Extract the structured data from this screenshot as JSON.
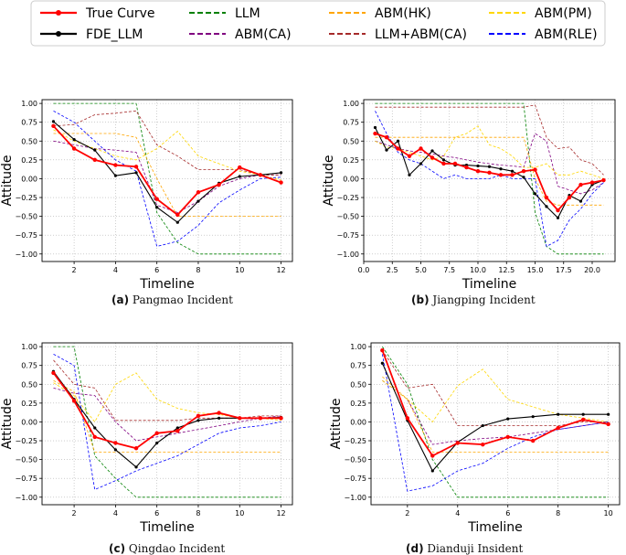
{
  "legend": {
    "entries": [
      {
        "label": "True Curve",
        "color": "#ff0000",
        "style": "solid-marker"
      },
      {
        "label": "FDE_LLM",
        "color": "#000000",
        "style": "solid-marker"
      },
      {
        "label": "LLM",
        "color": "#008000",
        "style": "dashed"
      },
      {
        "label": "ABM(CA)",
        "color": "#800080",
        "style": "dashed"
      },
      {
        "label": "ABM(HK)",
        "color": "#ffa500",
        "style": "dashed"
      },
      {
        "label": "LLM+ABM(CA)",
        "color": "#a52a2a",
        "style": "dashed"
      },
      {
        "label": "ABM(PM)",
        "color": "#ffd700",
        "style": "dashed"
      },
      {
        "label": "ABM(RLE)",
        "color": "#0000ff",
        "style": "dashed"
      }
    ]
  },
  "chart_data": [
    {
      "type": "line",
      "caption_tag": "(a)",
      "caption_text": "Pangmao Incident",
      "xlabel": "Timeline",
      "ylabel": "Attitude",
      "xlim": [
        0.45,
        12.55
      ],
      "ylim": [
        -1.1,
        1.05
      ],
      "xticks": [
        "2",
        "4",
        "6",
        "8",
        "10",
        "12"
      ],
      "xtick_values": [
        2,
        4,
        6,
        8,
        10,
        12
      ],
      "yticks": [
        "1.00",
        "0.75",
        "0.50",
        "0.25",
        "0.00",
        "−0.25",
        "−0.50",
        "−0.75",
        "−1.00"
      ],
      "ytick_values": [
        1.0,
        0.75,
        0.5,
        0.25,
        0.0,
        -0.25,
        -0.5,
        -0.75,
        -1.0
      ],
      "x": [
        1,
        2,
        3,
        4,
        5,
        6,
        7,
        8,
        9,
        10,
        11,
        12
      ],
      "series": [
        {
          "name": "LLM",
          "color": "#008000",
          "values": [
            1.0,
            1.0,
            1.0,
            1.0,
            1.0,
            -0.45,
            -0.85,
            -1.0,
            -1.0,
            -1.0,
            -1.0,
            -1.0
          ]
        },
        {
          "name": "ABM(CA)",
          "color": "#800080",
          "values": [
            0.5,
            0.45,
            0.4,
            0.38,
            0.35,
            -0.35,
            -0.45,
            -0.3,
            -0.1,
            0.0,
            0.05,
            0.05
          ]
        },
        {
          "name": "ABM(HK)",
          "color": "#ffa500",
          "values": [
            0.6,
            0.6,
            0.6,
            0.6,
            0.55,
            0.0,
            -0.5,
            -0.5,
            -0.5,
            -0.5,
            -0.5,
            -0.5
          ]
        },
        {
          "name": "LLM+ABM(CA)",
          "color": "#a52a2a",
          "values": [
            0.7,
            0.72,
            0.85,
            0.87,
            0.9,
            0.45,
            0.3,
            0.12,
            0.12,
            0.12,
            0.05,
            0.05
          ]
        },
        {
          "name": "ABM(PM)",
          "color": "#ffd700",
          "values": [
            0.65,
            0.5,
            0.4,
            0.3,
            0.25,
            0.4,
            0.63,
            0.3,
            0.2,
            0.1,
            0.05,
            -0.02
          ]
        },
        {
          "name": "ABM(RLE)",
          "color": "#0000ff",
          "values": [
            0.9,
            0.75,
            0.5,
            0.25,
            0.1,
            -0.9,
            -0.83,
            -0.62,
            -0.32,
            -0.15,
            0.0,
            0.02
          ]
        },
        {
          "name": "FDE_LLM",
          "color": "#000000",
          "values": [
            0.76,
            0.52,
            0.38,
            0.04,
            0.08,
            -0.38,
            -0.58,
            -0.3,
            -0.06,
            0.03,
            0.05,
            0.08
          ]
        },
        {
          "name": "True Curve",
          "color": "#ff0000",
          "values": [
            0.7,
            0.4,
            0.25,
            0.18,
            0.16,
            -0.27,
            -0.48,
            -0.18,
            -0.08,
            0.15,
            0.05,
            -0.05
          ]
        }
      ]
    },
    {
      "type": "line",
      "caption_tag": "(b)",
      "caption_text": "Jiangping Incident",
      "xlabel": "Timeline",
      "ylabel": "Attitude",
      "xlim": [
        0.0,
        22.0
      ],
      "ylim": [
        -1.1,
        1.05
      ],
      "xticks": [
        "0.0",
        "2.5",
        "5.0",
        "7.5",
        "10.0",
        "12.5",
        "15.0",
        "17.5",
        "20.0"
      ],
      "xtick_values": [
        0,
        2.5,
        5,
        7.5,
        10,
        12.5,
        15,
        17.5,
        20
      ],
      "yticks": [
        "1.00",
        "0.75",
        "0.50",
        "0.25",
        "0.00",
        "−0.25",
        "−0.50",
        "−0.75",
        "−1.00"
      ],
      "ytick_values": [
        1.0,
        0.75,
        0.5,
        0.25,
        0.0,
        -0.25,
        -0.5,
        -0.75,
        -1.0
      ],
      "x": [
        1,
        2,
        3,
        4,
        5,
        6,
        7,
        8,
        9,
        10,
        11,
        12,
        13,
        14,
        15,
        16,
        17,
        18,
        19,
        20,
        21
      ],
      "series": [
        {
          "name": "LLM",
          "color": "#008000",
          "values": [
            1.0,
            1.0,
            1.0,
            1.0,
            1.0,
            1.0,
            1.0,
            1.0,
            1.0,
            1.0,
            1.0,
            1.0,
            1.0,
            1.0,
            -0.45,
            -0.9,
            -1.0,
            -1.0,
            -1.0,
            -1.0,
            -1.0
          ]
        },
        {
          "name": "ABM(CA)",
          "color": "#800080",
          "values": [
            0.5,
            0.45,
            0.4,
            0.37,
            0.35,
            0.33,
            0.3,
            0.28,
            0.25,
            0.22,
            0.2,
            0.18,
            0.17,
            0.15,
            0.6,
            0.5,
            -0.1,
            -0.15,
            -0.2,
            -0.15,
            -0.05
          ]
        },
        {
          "name": "ABM(HK)",
          "color": "#ffa500",
          "values": [
            0.55,
            0.55,
            0.55,
            0.55,
            0.55,
            0.55,
            0.55,
            0.55,
            0.55,
            0.55,
            0.55,
            0.55,
            0.55,
            0.55,
            0.0,
            -0.3,
            -0.35,
            -0.35,
            -0.35,
            -0.35,
            -0.35
          ]
        },
        {
          "name": "LLM+ABM(CA)",
          "color": "#a52a2a",
          "values": [
            0.95,
            0.95,
            0.95,
            0.95,
            0.95,
            0.95,
            0.95,
            0.95,
            0.95,
            0.95,
            0.95,
            0.95,
            0.95,
            0.95,
            0.98,
            0.55,
            0.4,
            0.42,
            0.25,
            0.2,
            0.05
          ]
        },
        {
          "name": "ABM(PM)",
          "color": "#ffd700",
          "values": [
            0.5,
            0.42,
            0.4,
            0.35,
            0.3,
            0.25,
            0.3,
            0.55,
            0.6,
            0.7,
            0.45,
            0.4,
            0.3,
            0.15,
            0.15,
            0.2,
            0.05,
            0.05,
            0.1,
            0.05,
            0.0
          ]
        },
        {
          "name": "ABM(RLE)",
          "color": "#0000ff",
          "values": [
            0.9,
            0.6,
            0.35,
            0.25,
            0.2,
            0.1,
            0.0,
            0.05,
            0.0,
            0.0,
            0.0,
            0.05,
            0.0,
            0.0,
            0.0,
            -0.9,
            -0.82,
            -0.55,
            -0.4,
            -0.2,
            -0.05
          ]
        },
        {
          "name": "FDE_LLM",
          "color": "#000000",
          "values": [
            0.68,
            0.38,
            0.5,
            0.05,
            0.2,
            0.37,
            0.25,
            0.18,
            0.18,
            0.17,
            0.16,
            0.13,
            0.1,
            0.02,
            -0.2,
            -0.37,
            -0.52,
            -0.22,
            -0.3,
            -0.08,
            -0.02
          ]
        },
        {
          "name": "True Curve",
          "color": "#ff0000",
          "values": [
            0.6,
            0.55,
            0.4,
            0.3,
            0.4,
            0.28,
            0.2,
            0.2,
            0.15,
            0.1,
            0.08,
            0.05,
            0.05,
            0.1,
            0.12,
            -0.25,
            -0.42,
            -0.25,
            -0.08,
            -0.05,
            -0.02
          ]
        }
      ]
    },
    {
      "type": "line",
      "caption_tag": "(c)",
      "caption_text": "Qingdao Incident",
      "xlabel": "Timeline",
      "ylabel": "Attitude",
      "xlim": [
        0.45,
        12.55
      ],
      "ylim": [
        -1.1,
        1.05
      ],
      "xticks": [
        "2",
        "4",
        "6",
        "8",
        "10",
        "12"
      ],
      "xtick_values": [
        2,
        4,
        6,
        8,
        10,
        12
      ],
      "yticks": [
        "1.00",
        "0.75",
        "0.50",
        "0.25",
        "0.00",
        "−0.25",
        "−0.50",
        "−0.75",
        "−1.00"
      ],
      "ytick_values": [
        1.0,
        0.75,
        0.5,
        0.25,
        0.0,
        -0.25,
        -0.5,
        -0.75,
        -1.0
      ],
      "x": [
        1,
        2,
        3,
        4,
        5,
        6,
        7,
        8,
        9,
        10,
        11,
        12
      ],
      "series": [
        {
          "name": "LLM",
          "color": "#008000",
          "values": [
            1.0,
            1.0,
            -0.45,
            -0.75,
            -1.0,
            -1.0,
            -1.0,
            -1.0,
            -1.0,
            -1.0,
            -1.0,
            -1.0
          ]
        },
        {
          "name": "ABM(CA)",
          "color": "#800080",
          "values": [
            0.45,
            0.38,
            0.35,
            0.0,
            -0.25,
            -0.2,
            -0.15,
            -0.1,
            -0.05,
            0.0,
            0.05,
            0.08
          ]
        },
        {
          "name": "ABM(HK)",
          "color": "#ffa500",
          "values": [
            0.55,
            0.4,
            -0.4,
            -0.4,
            -0.4,
            -0.4,
            -0.4,
            -0.4,
            -0.4,
            -0.4,
            -0.4,
            -0.4
          ]
        },
        {
          "name": "LLM+ABM(CA)",
          "color": "#a52a2a",
          "values": [
            0.82,
            0.5,
            0.45,
            0.02,
            0.02,
            0.02,
            0.02,
            0.05,
            0.05,
            0.05,
            0.08,
            0.08
          ]
        },
        {
          "name": "ABM(PM)",
          "color": "#ffd700",
          "values": [
            0.52,
            0.35,
            0.0,
            0.5,
            0.65,
            0.3,
            0.18,
            0.12,
            0.1,
            0.05,
            0.05,
            0.02
          ]
        },
        {
          "name": "ABM(RLE)",
          "color": "#0000ff",
          "values": [
            0.9,
            0.75,
            -0.9,
            -0.78,
            -0.65,
            -0.55,
            -0.45,
            -0.3,
            -0.15,
            -0.08,
            -0.05,
            0.0
          ]
        },
        {
          "name": "FDE_LLM",
          "color": "#000000",
          "values": [
            0.67,
            0.3,
            -0.08,
            -0.37,
            -0.6,
            -0.28,
            -0.08,
            0.02,
            0.05,
            0.05,
            0.05,
            0.06
          ]
        },
        {
          "name": "True Curve",
          "color": "#ff0000",
          "values": [
            0.65,
            0.28,
            -0.2,
            -0.28,
            -0.35,
            -0.15,
            -0.12,
            0.08,
            0.12,
            0.05,
            0.05,
            0.05
          ]
        }
      ]
    },
    {
      "type": "line",
      "caption_tag": "(d)",
      "caption_text": "Dianduji Insident",
      "xlabel": "Timeline",
      "ylabel": "Attitude",
      "xlim": [
        0.55,
        10.45
      ],
      "ylim": [
        -1.1,
        1.05
      ],
      "xticks": [
        "2",
        "4",
        "6",
        "8",
        "10"
      ],
      "xtick_values": [
        2,
        4,
        6,
        8,
        10
      ],
      "yticks": [
        "1.00",
        "0.75",
        "0.50",
        "0.25",
        "0.00",
        "−0.25",
        "−0.50",
        "−0.75",
        "−1.00"
      ],
      "ytick_values": [
        1.0,
        0.75,
        0.5,
        0.25,
        0.0,
        -0.25,
        -0.5,
        -0.75,
        -1.0
      ],
      "x": [
        1,
        2,
        3,
        4,
        5,
        6,
        7,
        8,
        9,
        10
      ],
      "series": [
        {
          "name": "LLM",
          "color": "#008000",
          "values": [
            1.0,
            0.5,
            -0.5,
            -1.0,
            -1.0,
            -1.0,
            -1.0,
            -1.0,
            -1.0,
            -1.0
          ]
        },
        {
          "name": "ABM(CA)",
          "color": "#800080",
          "values": [
            0.55,
            0.3,
            -0.3,
            -0.25,
            -0.22,
            -0.2,
            -0.15,
            -0.1,
            -0.05,
            0.0
          ]
        },
        {
          "name": "ABM(HK)",
          "color": "#ffa500",
          "values": [
            0.6,
            0.3,
            -0.4,
            -0.4,
            -0.4,
            -0.4,
            -0.4,
            -0.4,
            -0.4,
            -0.4
          ]
        },
        {
          "name": "LLM+ABM(CA)",
          "color": "#a52a2a",
          "values": [
            0.95,
            0.45,
            0.5,
            -0.05,
            -0.05,
            -0.05,
            -0.05,
            -0.05,
            0.0,
            0.0
          ]
        },
        {
          "name": "ABM(PM)",
          "color": "#ffd700",
          "values": [
            0.55,
            0.3,
            0.0,
            0.48,
            0.7,
            0.3,
            0.2,
            0.1,
            0.05,
            0.0
          ]
        },
        {
          "name": "ABM(RLE)",
          "color": "#0000ff",
          "values": [
            0.9,
            -0.92,
            -0.85,
            -0.65,
            -0.55,
            -0.35,
            -0.2,
            -0.1,
            -0.05,
            0.0
          ]
        },
        {
          "name": "FDE_LLM",
          "color": "#000000",
          "values": [
            0.78,
            0.02,
            -0.65,
            -0.27,
            -0.05,
            0.04,
            0.07,
            0.1,
            0.1,
            0.1
          ]
        },
        {
          "name": "True Curve",
          "color": "#ff0000",
          "values": [
            0.95,
            0.05,
            -0.45,
            -0.28,
            -0.3,
            -0.2,
            -0.25,
            -0.08,
            0.03,
            -0.03
          ]
        }
      ]
    }
  ]
}
